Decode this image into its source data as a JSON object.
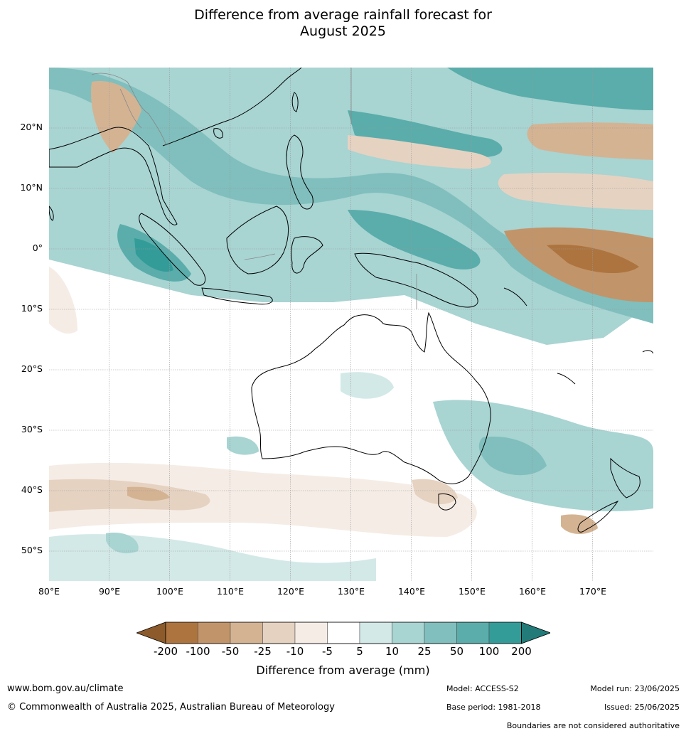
{
  "title_line1": "Difference from average rainfall forecast for",
  "title_line2": "August 2025",
  "lat_labels": [
    "20°N",
    "10°N",
    "0°",
    "10°S",
    "20°S",
    "30°S",
    "40°S",
    "50°S"
  ],
  "lon_labels": [
    "80°E",
    "90°E",
    "100°E",
    "110°E",
    "120°E",
    "130°E",
    "140°E",
    "150°E",
    "160°E",
    "170°E"
  ],
  "legend": {
    "label": "Difference from average (mm)",
    "ticks": [
      "-200",
      "-100",
      "-50",
      "-25",
      "-10",
      "-5",
      "5",
      "10",
      "25",
      "50",
      "100",
      "200"
    ],
    "colors": [
      "#8c5a2b",
      "#ad743f",
      "#c2946a",
      "#d4b393",
      "#e6d2c1",
      "#f5ece6",
      "#ffffff",
      "#d3e9e7",
      "#a8d4d2",
      "#80bfbd",
      "#5aadab",
      "#339c99",
      "#227b78"
    ]
  },
  "footer": {
    "website": "www.bom.gov.au/climate",
    "copyright": "© Commonwealth of Australia 2025, Australian Bureau of Meteorology",
    "model": "Model: ACCESS-S2",
    "base_period": "Base period: 1981-2018",
    "model_run": "Model run: 23/06/2025",
    "issued": "Issued: 25/06/2025",
    "disclaimer": "Boundaries are not considered authoritative"
  }
}
